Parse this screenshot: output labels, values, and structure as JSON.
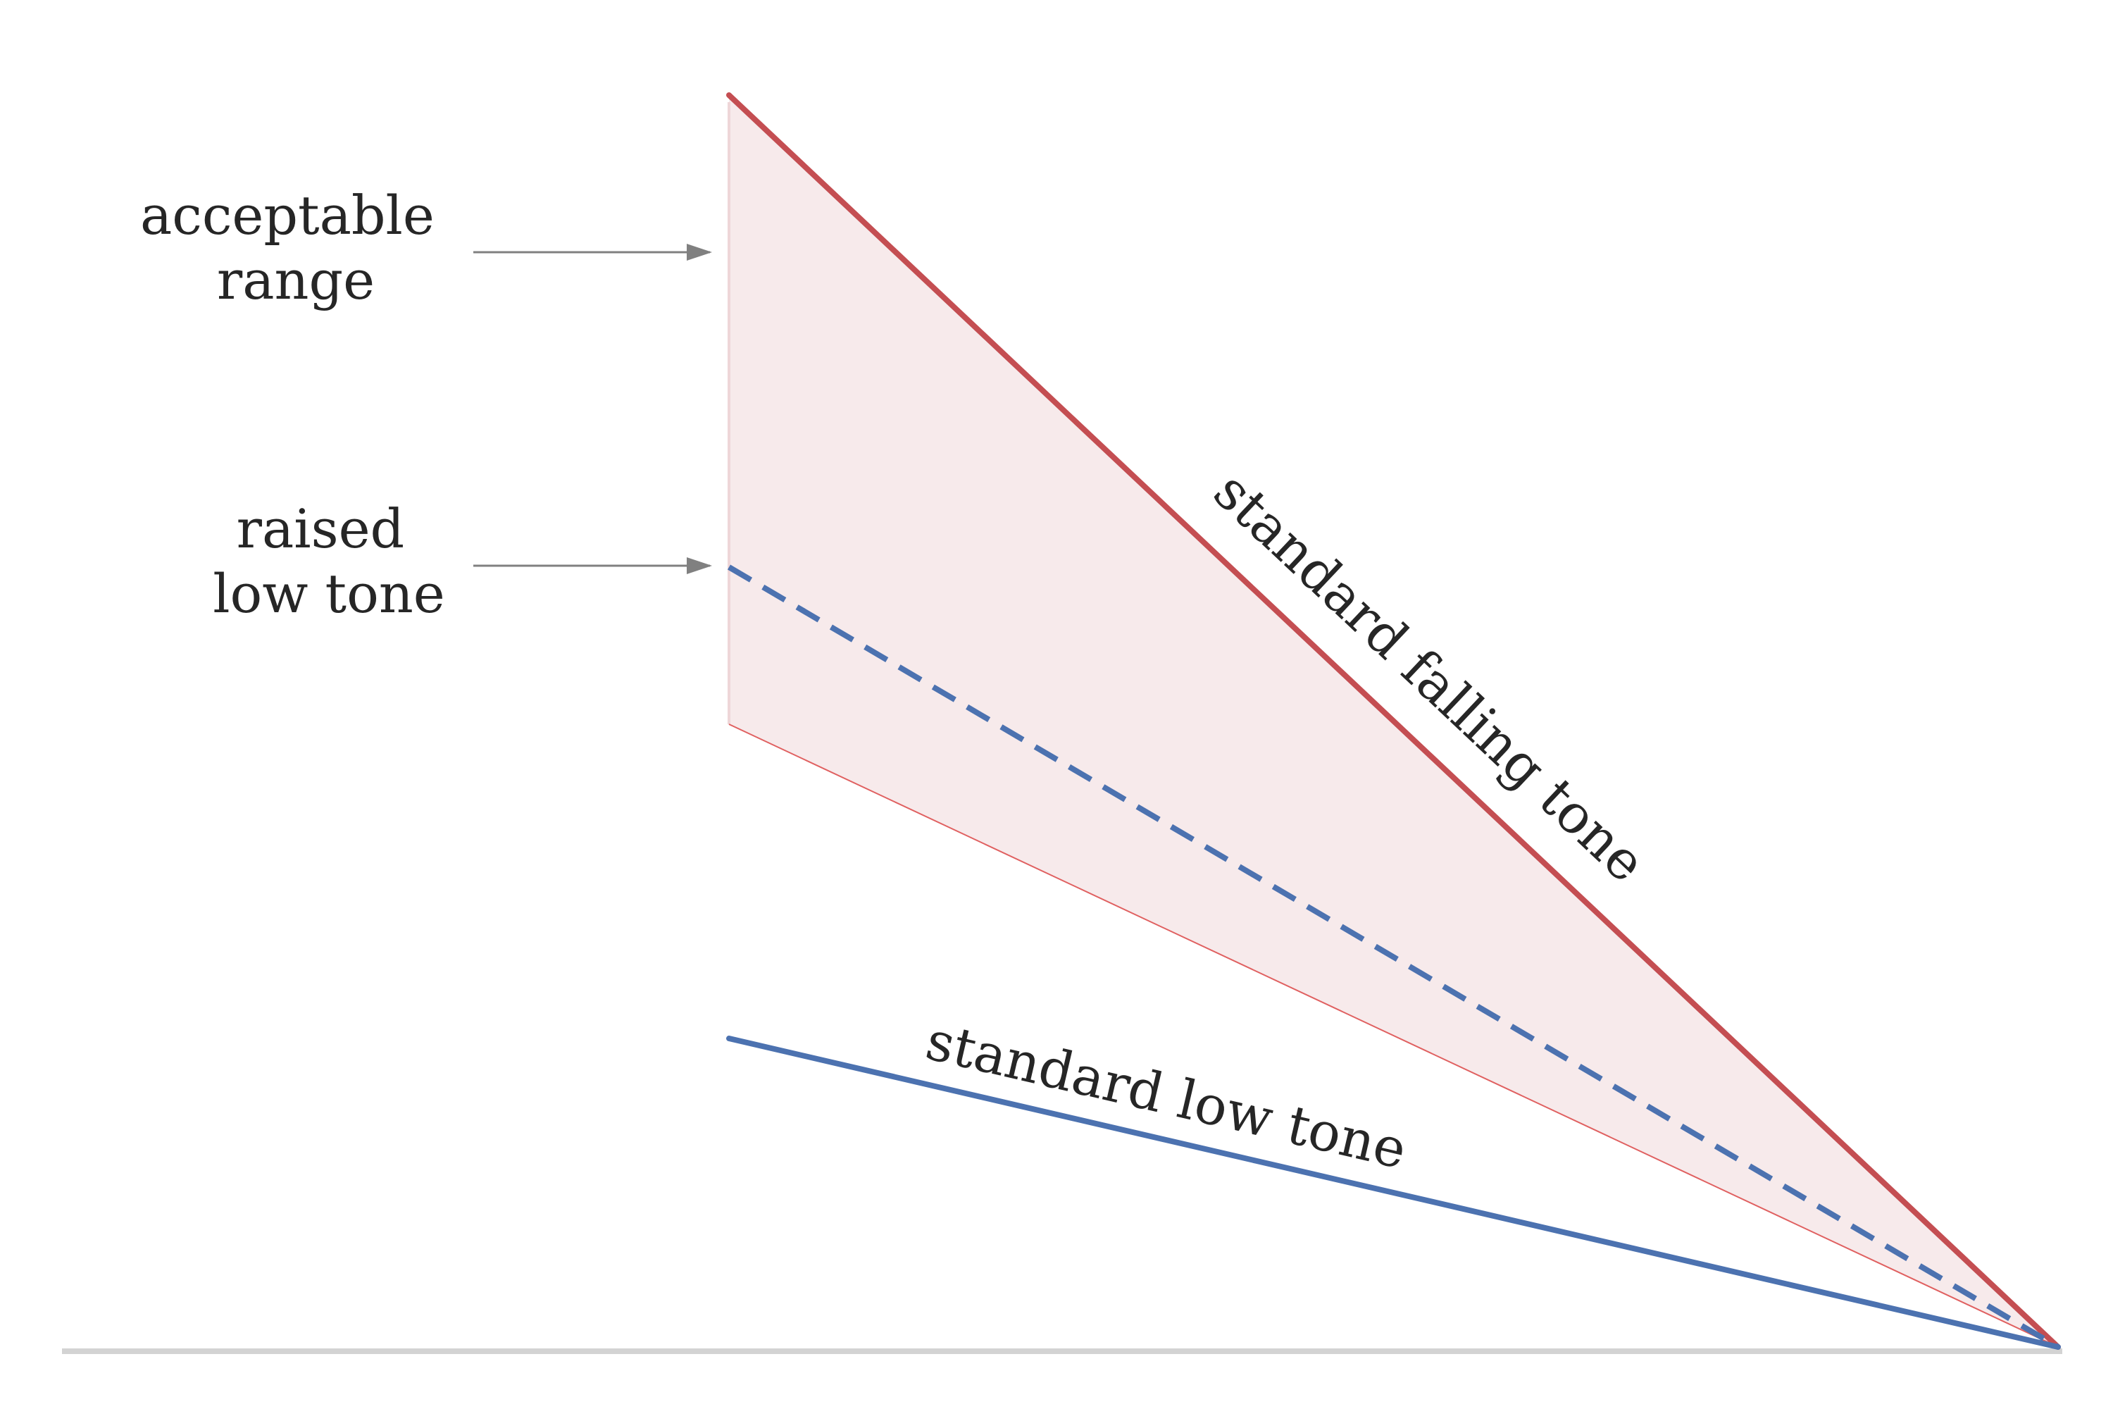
{
  "colors": {
    "falling_tone": "#c44e52",
    "low_tone": "#4c72b0",
    "range_fill": "#f7eaeb",
    "range_edge": "#e06060",
    "arrow": "#808080",
    "baseline": "#d3d3d3",
    "text": "#262626"
  },
  "labels": {
    "acceptable_range": [
      "acceptable",
      "range"
    ],
    "raised_low_tone": [
      "raised",
      "low tone"
    ],
    "standard_falling_tone": "standard falling tone",
    "standard_low_tone": "standard low tone"
  }
}
